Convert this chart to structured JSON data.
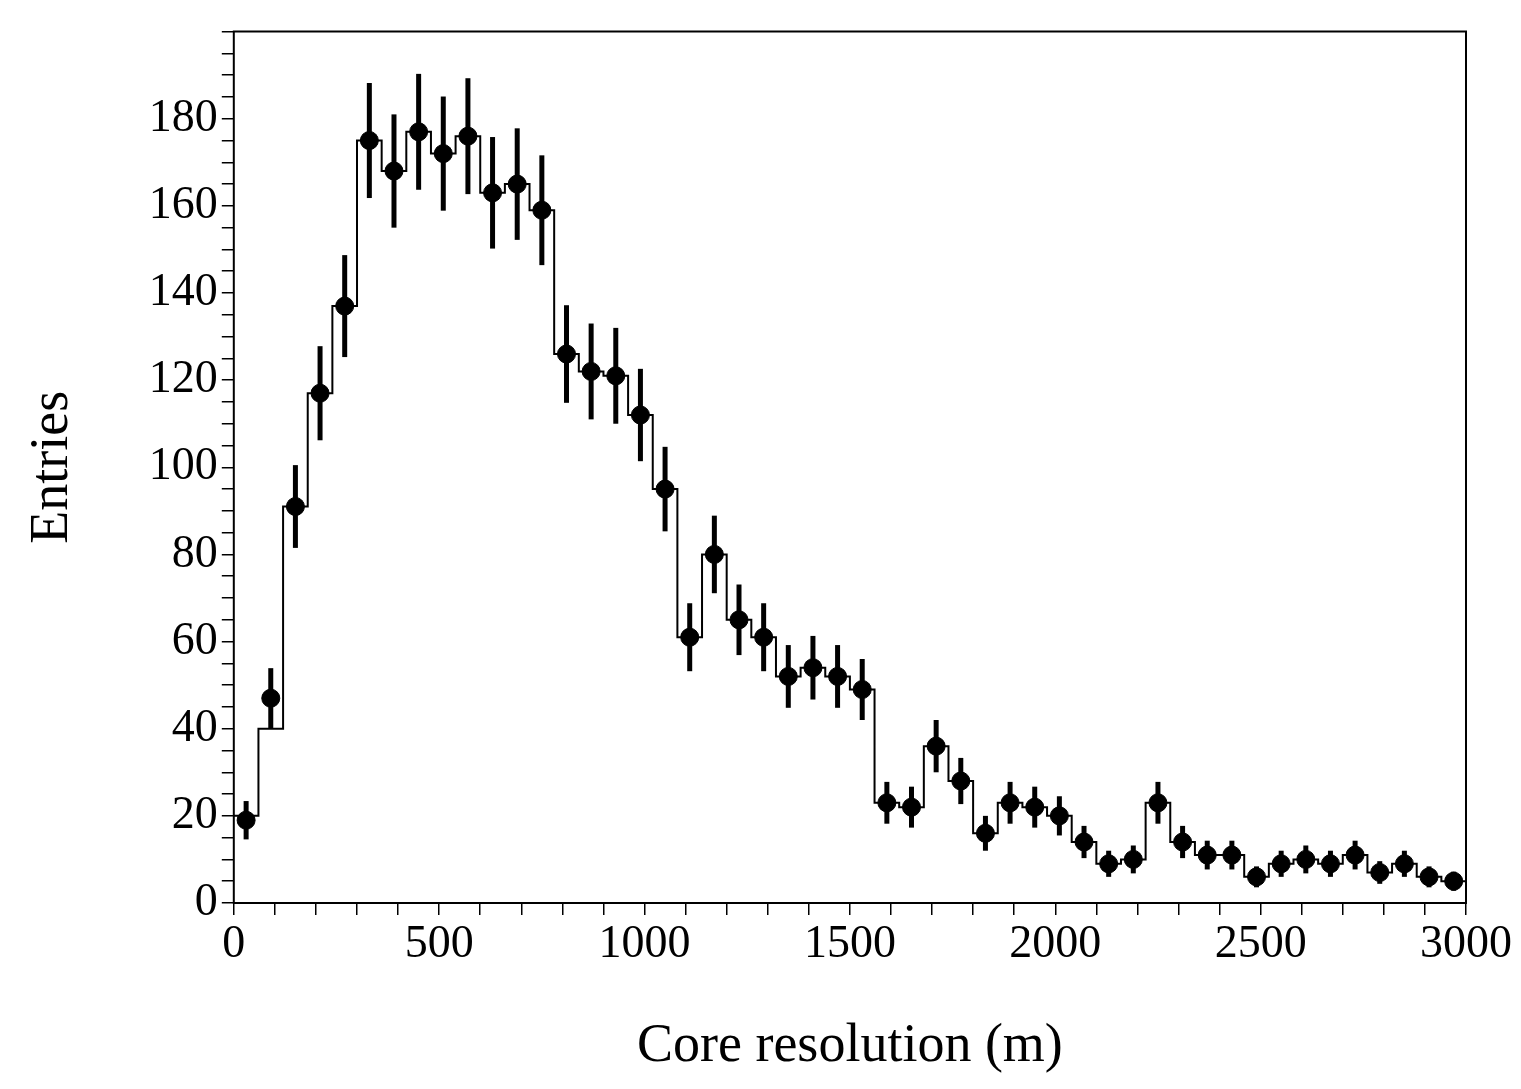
{
  "chart_data": {
    "type": "histogram",
    "xlabel": "Core resolution (m)",
    "ylabel": "Entries",
    "bins": [
      0,
      60,
      120,
      180,
      240,
      300,
      360,
      420,
      480,
      540,
      600,
      660,
      720,
      780,
      840,
      900,
      960,
      1020,
      1080,
      1140,
      1200,
      1260,
      1320,
      1380,
      1440,
      1500,
      1560,
      1620,
      1680,
      1740,
      1800,
      1860,
      1920,
      1980,
      2040,
      2100,
      2160,
      2220,
      2280,
      2340,
      2400,
      2460,
      2520,
      2580,
      2640,
      2700,
      2760,
      2820,
      2880,
      2940,
      3000
    ],
    "series": [
      {
        "type": "histogram",
        "color": "#000000",
        "values": [
          20,
          40,
          91,
          117,
          137,
          175,
          168,
          177,
          172,
          176,
          163,
          165,
          159,
          126,
          122,
          121,
          112,
          95,
          61,
          80,
          65,
          61,
          52,
          54,
          52,
          49,
          23,
          22,
          36,
          28,
          16,
          23,
          22,
          20,
          14,
          9,
          10,
          23,
          14,
          11,
          11,
          6,
          9,
          10,
          9,
          11,
          7,
          9,
          6,
          5
        ]
      },
      {
        "type": "scatter",
        "color": "#000000",
        "x": [
          30,
          90,
          150,
          210,
          270,
          330,
          390,
          450,
          510,
          570,
          630,
          690,
          750,
          810,
          870,
          930,
          990,
          1050,
          1110,
          1170,
          1230,
          1290,
          1350,
          1410,
          1470,
          1530,
          1590,
          1650,
          1710,
          1770,
          1830,
          1890,
          1950,
          2010,
          2070,
          2130,
          2190,
          2250,
          2310,
          2370,
          2430,
          2490,
          2550,
          2610,
          2670,
          2730,
          2790,
          2850,
          2910,
          2970
        ],
        "values": [
          19,
          47,
          91,
          117,
          137,
          175,
          168,
          177,
          172,
          176,
          163,
          165,
          159,
          126,
          122,
          121,
          112,
          95,
          61,
          80,
          65,
          61,
          52,
          54,
          52,
          49,
          23,
          22,
          36,
          28,
          16,
          23,
          22,
          20,
          14,
          9,
          10,
          23,
          14,
          11,
          11,
          6,
          9,
          10,
          9,
          11,
          7,
          9,
          6,
          5
        ],
        "errors": [
          4.4,
          6.9,
          9.5,
          10.8,
          11.7,
          13.2,
          13,
          13.3,
          13.1,
          13.3,
          12.8,
          12.8,
          12.6,
          11.2,
          11,
          11,
          10.6,
          9.7,
          7.8,
          8.9,
          8.1,
          7.8,
          7.2,
          7.3,
          7.2,
          7,
          4.8,
          4.7,
          6,
          5.3,
          4,
          4.8,
          4.7,
          4.5,
          3.7,
          3,
          3.2,
          4.8,
          3.7,
          3.3,
          3.3,
          2.4,
          3,
          3.2,
          3,
          3.3,
          2.6,
          3,
          2.4,
          2.2
        ]
      }
    ],
    "marker": "circle",
    "xlim": [
      0,
      3000
    ],
    "ylim": [
      0,
      200
    ],
    "xticks": [
      0,
      {
        "value": 100,
        "label": null
      },
      {
        "value": 200,
        "label": null
      },
      {
        "value": 300,
        "label": null
      },
      {
        "value": 400,
        "label": null
      },
      500,
      {
        "value": 600,
        "label": null
      },
      {
        "value": 700,
        "label": null
      },
      {
        "value": 800,
        "label": null
      },
      {
        "value": 900,
        "label": null
      },
      1000,
      {
        "value": 1100,
        "label": null
      },
      {
        "value": 1200,
        "label": null
      },
      {
        "value": 1300,
        "label": null
      },
      {
        "value": 1400,
        "label": null
      },
      1500,
      {
        "value": 1600,
        "label": null
      },
      {
        "value": 1700,
        "label": null
      },
      {
        "value": 1800,
        "label": null
      },
      {
        "value": 1900,
        "label": null
      },
      2000,
      {
        "value": 2100,
        "label": null
      },
      {
        "value": 2200,
        "label": null
      },
      {
        "value": 2300,
        "label": null
      },
      {
        "value": 2400,
        "label": null
      },
      2500,
      {
        "value": 2600,
        "label": null
      },
      {
        "value": 2700,
        "label": null
      },
      {
        "value": 2800,
        "label": null
      },
      {
        "value": 2900,
        "label": null
      },
      3000
    ],
    "yticks": [
      0,
      {
        "value": 5,
        "label": null
      },
      {
        "value": 10,
        "label": null
      },
      {
        "value": 15,
        "label": null
      },
      20,
      {
        "value": 25,
        "label": null
      },
      {
        "value": 30,
        "label": null
      },
      {
        "value": 35,
        "label": null
      },
      40,
      {
        "value": 45,
        "label": null
      },
      {
        "value": 50,
        "label": null
      },
      {
        "value": 55,
        "label": null
      },
      60,
      {
        "value": 65,
        "label": null
      },
      {
        "value": 70,
        "label": null
      },
      {
        "value": 75,
        "label": null
      },
      80,
      {
        "value": 85,
        "label": null
      },
      {
        "value": 90,
        "label": null
      },
      {
        "value": 95,
        "label": null
      },
      100,
      {
        "value": 105,
        "label": null
      },
      {
        "value": 110,
        "label": null
      },
      {
        "value": 115,
        "label": null
      },
      120,
      {
        "value": 125,
        "label": null
      },
      {
        "value": 130,
        "label": null
      },
      {
        "value": 135,
        "label": null
      },
      140,
      {
        "value": 145,
        "label": null
      },
      {
        "value": 150,
        "label": null
      },
      {
        "value": 155,
        "label": null
      },
      160,
      {
        "value": 165,
        "label": null
      },
      {
        "value": 170,
        "label": null
      },
      {
        "value": 175,
        "label": null
      },
      180,
      {
        "value": 185,
        "label": null
      },
      {
        "value": 190,
        "label": null
      },
      {
        "value": 195,
        "label": null
      },
      {
        "value": 200,
        "label": null
      }
    ],
    "grid": false,
    "legend": false
  }
}
